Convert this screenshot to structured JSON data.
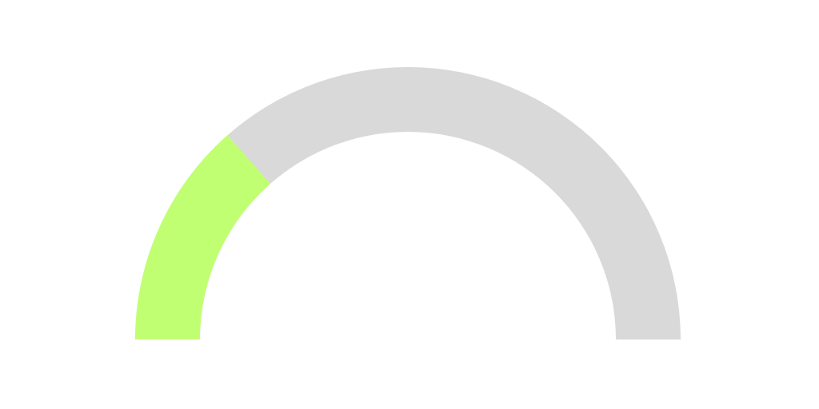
{
  "chart_data": {
    "type": "gauge",
    "value": 27,
    "range": [
      0,
      100
    ],
    "color": "#c1ff72",
    "track_color": "#d9d9d9"
  }
}
